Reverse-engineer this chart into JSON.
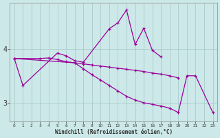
{
  "xlabel": "Windchill (Refroidissement éolien,°C)",
  "bg_color": "#cce8e8",
  "grid_color": "#aacccc",
  "line_color": "#990099",
  "ylim": [
    2.65,
    4.85
  ],
  "ytick_vals": [
    3.0,
    4.0
  ],
  "xlim": [
    -0.5,
    23.5
  ],
  "figsize": [
    3.2,
    2.0
  ],
  "dpi": 100,
  "line1_x": [
    0,
    1,
    5,
    6,
    7,
    8,
    11,
    12,
    13,
    14,
    15,
    16,
    17
  ],
  "line1_y": [
    3.82,
    3.32,
    3.92,
    3.87,
    3.78,
    3.75,
    4.37,
    4.48,
    4.72,
    4.08,
    4.38,
    3.97,
    3.85
  ],
  "line2_x": [
    0,
    3,
    4,
    5,
    6,
    7,
    8,
    9,
    10,
    11,
    12,
    13,
    14,
    15,
    16,
    17,
    18,
    19
  ],
  "line2_y": [
    3.82,
    3.82,
    3.83,
    3.8,
    3.76,
    3.74,
    3.72,
    3.7,
    3.68,
    3.66,
    3.64,
    3.62,
    3.6,
    3.58,
    3.55,
    3.53,
    3.5,
    3.46
  ],
  "line3_x": [
    0,
    7,
    8,
    9,
    10,
    11,
    12,
    13,
    14,
    15,
    16,
    17,
    18,
    19,
    20,
    21,
    23
  ],
  "line3_y": [
    3.82,
    3.74,
    3.63,
    3.52,
    3.42,
    3.32,
    3.22,
    3.12,
    3.05,
    3.0,
    2.97,
    2.94,
    2.9,
    2.82,
    3.5,
    3.5,
    2.82
  ]
}
